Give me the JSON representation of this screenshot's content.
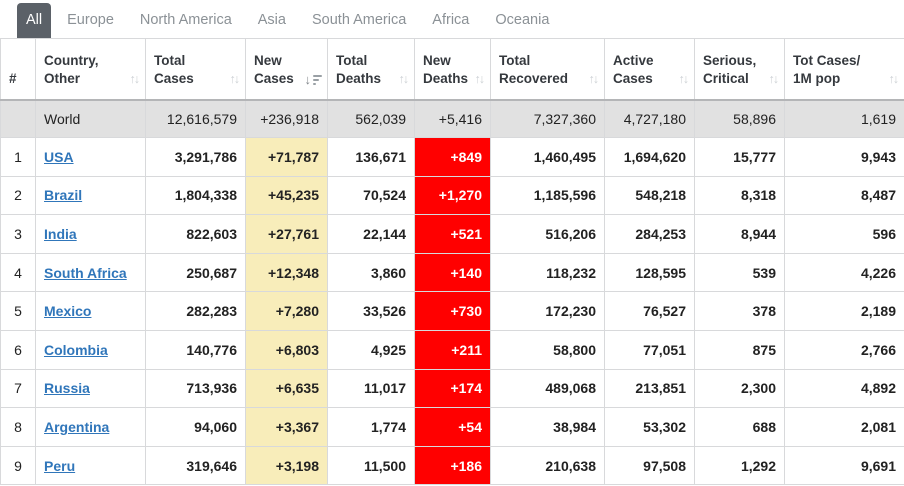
{
  "tabs": {
    "items": [
      {
        "label": "All",
        "active": true
      },
      {
        "label": "Europe",
        "active": false
      },
      {
        "label": "North America",
        "active": false
      },
      {
        "label": "Asia",
        "active": false
      },
      {
        "label": "South America",
        "active": false
      },
      {
        "label": "Africa",
        "active": false
      },
      {
        "label": "Oceania",
        "active": false
      }
    ]
  },
  "icons": {
    "sort_inactive_icon": "↑↓",
    "sort_active_desc_arrow": "↓"
  },
  "colors": {
    "active_tab_bg": "#5B6168",
    "world_row_bg": "#E1E1E1",
    "new_cases_highlight": "#F8EDBA",
    "new_deaths_highlight": "#FF0000",
    "country_link_blue": "#3076BA"
  },
  "table": {
    "columns": [
      {
        "key": "rank",
        "label": "#",
        "sort": "none"
      },
      {
        "key": "country",
        "label": "Country,\nOther",
        "sort": "inactive"
      },
      {
        "key": "total_cases",
        "label": "Total\nCases",
        "sort": "inactive"
      },
      {
        "key": "new_cases",
        "label": "New\nCases",
        "sort": "active_desc"
      },
      {
        "key": "total_deaths",
        "label": "Total\nDeaths",
        "sort": "inactive"
      },
      {
        "key": "new_deaths",
        "label": "New\nDeaths",
        "sort": "inactive"
      },
      {
        "key": "total_recovered",
        "label": "Total\nRecovered",
        "sort": "inactive"
      },
      {
        "key": "active_cases",
        "label": "Active\nCases",
        "sort": "inactive"
      },
      {
        "key": "serious_critical",
        "label": "Serious,\nCritical",
        "sort": "inactive"
      },
      {
        "key": "cases_per_1m",
        "label": "Tot Cases/\n1M pop",
        "sort": "inactive"
      }
    ],
    "world_row": {
      "rank": "",
      "country": "World",
      "total_cases": "12,616,579",
      "new_cases": "+236,918",
      "total_deaths": "562,039",
      "new_deaths": "+5,416",
      "total_recovered": "7,327,360",
      "active_cases": "4,727,180",
      "serious_critical": "58,896",
      "cases_per_1m": "1,619"
    },
    "rows": [
      {
        "rank": "1",
        "country": "USA",
        "total_cases": "3,291,786",
        "new_cases": "+71,787",
        "total_deaths": "136,671",
        "new_deaths": "+849",
        "total_recovered": "1,460,495",
        "active_cases": "1,694,620",
        "serious_critical": "15,777",
        "cases_per_1m": "9,943"
      },
      {
        "rank": "2",
        "country": "Brazil",
        "total_cases": "1,804,338",
        "new_cases": "+45,235",
        "total_deaths": "70,524",
        "new_deaths": "+1,270",
        "total_recovered": "1,185,596",
        "active_cases": "548,218",
        "serious_critical": "8,318",
        "cases_per_1m": "8,487"
      },
      {
        "rank": "3",
        "country": "India",
        "total_cases": "822,603",
        "new_cases": "+27,761",
        "total_deaths": "22,144",
        "new_deaths": "+521",
        "total_recovered": "516,206",
        "active_cases": "284,253",
        "serious_critical": "8,944",
        "cases_per_1m": "596"
      },
      {
        "rank": "4",
        "country": "South Africa",
        "total_cases": "250,687",
        "new_cases": "+12,348",
        "total_deaths": "3,860",
        "new_deaths": "+140",
        "total_recovered": "118,232",
        "active_cases": "128,595",
        "serious_critical": "539",
        "cases_per_1m": "4,226"
      },
      {
        "rank": "5",
        "country": "Mexico",
        "total_cases": "282,283",
        "new_cases": "+7,280",
        "total_deaths": "33,526",
        "new_deaths": "+730",
        "total_recovered": "172,230",
        "active_cases": "76,527",
        "serious_critical": "378",
        "cases_per_1m": "2,189"
      },
      {
        "rank": "6",
        "country": "Colombia",
        "total_cases": "140,776",
        "new_cases": "+6,803",
        "total_deaths": "4,925",
        "new_deaths": "+211",
        "total_recovered": "58,800",
        "active_cases": "77,051",
        "serious_critical": "875",
        "cases_per_1m": "2,766"
      },
      {
        "rank": "7",
        "country": "Russia",
        "total_cases": "713,936",
        "new_cases": "+6,635",
        "total_deaths": "11,017",
        "new_deaths": "+174",
        "total_recovered": "489,068",
        "active_cases": "213,851",
        "serious_critical": "2,300",
        "cases_per_1m": "4,892"
      },
      {
        "rank": "8",
        "country": "Argentina",
        "total_cases": "94,060",
        "new_cases": "+3,367",
        "total_deaths": "1,774",
        "new_deaths": "+54",
        "total_recovered": "38,984",
        "active_cases": "53,302",
        "serious_critical": "688",
        "cases_per_1m": "2,081"
      },
      {
        "rank": "9",
        "country": "Peru",
        "total_cases": "319,646",
        "new_cases": "+3,198",
        "total_deaths": "11,500",
        "new_deaths": "+186",
        "total_recovered": "210,638",
        "active_cases": "97,508",
        "serious_critical": "1,292",
        "cases_per_1m": "9,691"
      }
    ]
  }
}
